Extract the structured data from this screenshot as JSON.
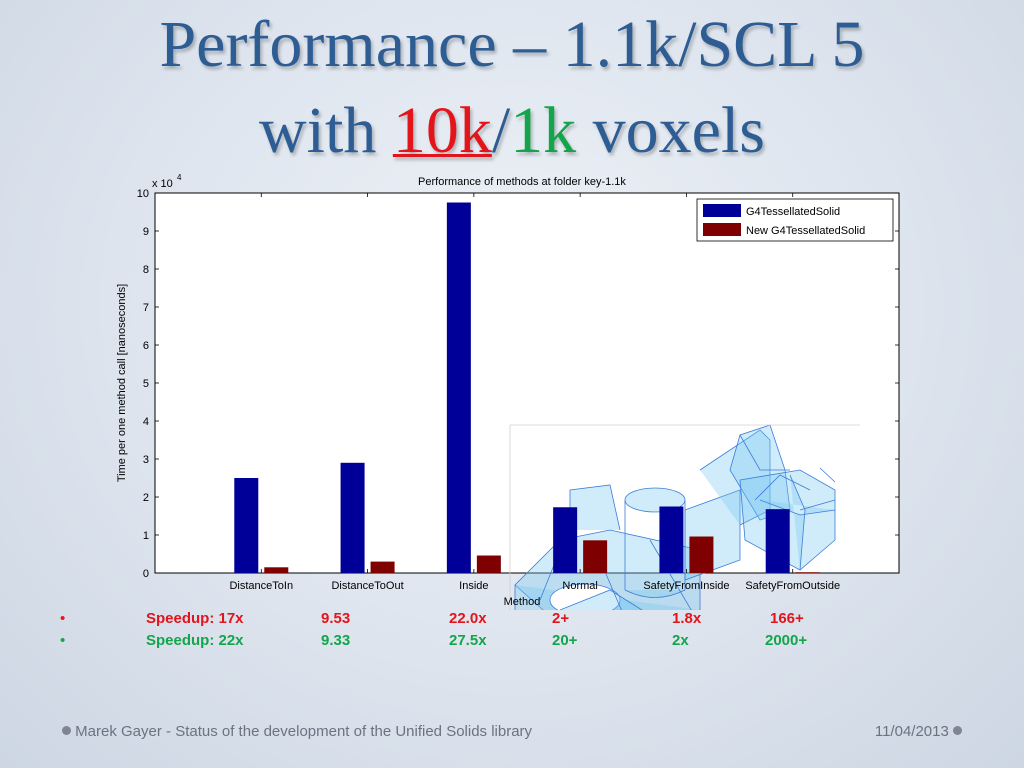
{
  "slide": {
    "title_line1": "Performance – 1.1k/SCL 5",
    "title_line2_prefix": "with ",
    "title_line2_red": "10k",
    "title_line2_slash": "/",
    "title_line2_green": "1k",
    "title_line2_suffix": " voxels",
    "colors": {
      "title": "#2e5d94",
      "red": "#e4141b",
      "green": "#13a54a"
    }
  },
  "chart_data": {
    "type": "bar",
    "title": "Performance of methods at folder key-1.1k",
    "xlabel": "Method",
    "ylabel": "Time per one method call [nanoseconds]",
    "y_multiplier": "x 10",
    "y_multiplier_exp": "4",
    "ylim": [
      0,
      10
    ],
    "yticks": [
      "0",
      "1",
      "2",
      "3",
      "4",
      "5",
      "6",
      "7",
      "8",
      "9",
      "10"
    ],
    "categories": [
      "DistanceToIn",
      "DistanceToOut",
      "Inside",
      "Normal",
      "SafetyFromInside",
      "SafetyFromOutside"
    ],
    "series": [
      {
        "name": "G4TessellatedSolid",
        "color": "#000099",
        "values": [
          2.5,
          2.9,
          9.75,
          1.73,
          1.75,
          1.68
        ]
      },
      {
        "name": "New G4TessellatedSolid",
        "color": "#7f0000",
        "values": [
          0.15,
          0.3,
          0.46,
          0.86,
          0.96,
          0.02
        ]
      }
    ],
    "legend": "top-right",
    "grid": false,
    "inset_image": "tessellated-solid-wireframe"
  },
  "speedups": [
    {
      "bullet": "•",
      "label": "Speedup: 17x",
      "values": [
        "9.53",
        "22.0x",
        "2+",
        "1.8x",
        "166+"
      ],
      "color": "#e4141b"
    },
    {
      "bullet": "•",
      "label": "Speedup: 22x",
      "values": [
        "9.33",
        "27.5x",
        "20+",
        "2x",
        "2000+"
      ],
      "color": "#13a54a"
    }
  ],
  "footer": {
    "left": "Marek Gayer - Status of the development of the Unified Solids library",
    "right": "11/04/2013"
  }
}
